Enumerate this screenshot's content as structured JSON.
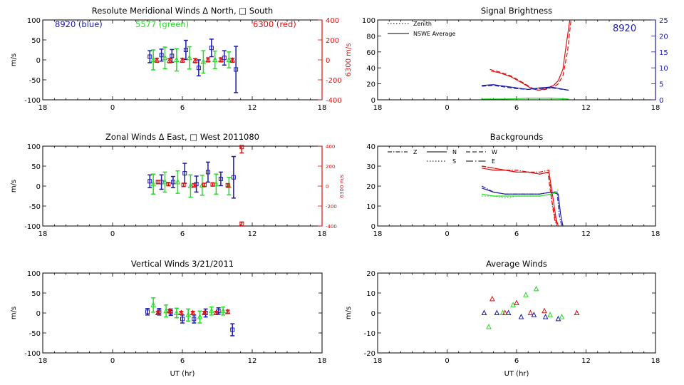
{
  "colors": {
    "axis": "#000000",
    "blue": "#1a1aa8",
    "green": "#22dd22",
    "red": "#dd1111"
  },
  "chart_data": [
    {
      "id": "meridional",
      "type": "scatter",
      "title": "Resolute Meridional Winds Δ North, □ South",
      "xlabel": "",
      "ylabel": "m/s",
      "xticks": [
        "18",
        "0",
        "6",
        "12",
        "18"
      ],
      "yticks": [
        "100",
        "50",
        "0",
        "-50",
        "-100"
      ],
      "right_axis": {
        "label": "6300 m/s",
        "ticks": [
          "400",
          "200",
          "0",
          "-200",
          "-400"
        ]
      },
      "ylim": [
        -100,
        100
      ],
      "legend": [
        {
          "label": "8920 (blue)",
          "color": "blue"
        },
        {
          "label": "5577 (green)",
          "color": "green"
        },
        {
          "label": "6300 (red)",
          "color": "red"
        }
      ],
      "series": [
        {
          "name": "8920 (blue)",
          "color": "blue",
          "marker": "square",
          "points": [
            [
              3.2,
              8,
              15
            ],
            [
              4.2,
              12,
              15
            ],
            [
              5.1,
              10,
              16
            ],
            [
              6.3,
              25,
              24
            ],
            [
              7.4,
              -20,
              20
            ],
            [
              8.5,
              30,
              22
            ],
            [
              9.6,
              5,
              18
            ],
            [
              10.6,
              -24,
              58
            ]
          ]
        },
        {
          "name": "5577 (green)",
          "color": "green",
          "marker": "triangle",
          "points": [
            [
              3.5,
              0,
              25
            ],
            [
              4.5,
              5,
              27
            ],
            [
              5.5,
              0,
              28
            ],
            [
              6.6,
              5,
              28
            ],
            [
              7.8,
              -5,
              28
            ],
            [
              8.8,
              0,
              22
            ],
            [
              10.0,
              0,
              20
            ]
          ]
        },
        {
          "name": "6300 (red)",
          "color": "red",
          "marker": "triangle",
          "points": [
            [
              3.8,
              -1,
              5
            ],
            [
              4.9,
              -2,
              5
            ],
            [
              6.0,
              -1,
              5
            ],
            [
              7.1,
              -2,
              5
            ],
            [
              8.2,
              0,
              5
            ],
            [
              9.3,
              0,
              5
            ],
            [
              10.3,
              -1,
              5
            ]
          ]
        }
      ]
    },
    {
      "id": "brightness",
      "type": "line",
      "title": "Signal Brightness",
      "xlabel": "",
      "ylabel": "",
      "xticks": [
        "18",
        "0",
        "6",
        "12",
        "18"
      ],
      "yticks": [
        "100",
        "80",
        "60",
        "40",
        "20",
        "0"
      ],
      "right_axis": {
        "label": "",
        "ticks": [
          "25",
          "20",
          "15",
          "10",
          "5",
          "0"
        ]
      },
      "ylim": [
        0,
        100
      ],
      "annotation": "8920",
      "legend": [
        {
          "label": "Zenith",
          "style": "dotted"
        },
        {
          "label": "NSWE Average",
          "style": "solid"
        }
      ],
      "series": [
        {
          "name": "Zenith",
          "color": "red",
          "style": "dashed",
          "x": [
            3.7,
            4.5,
            5.5,
            6.5,
            7.3,
            7.9,
            8.5,
            9.2,
            9.6,
            10.0,
            10.4,
            10.7
          ],
          "y": [
            38,
            35,
            30,
            22,
            15,
            12,
            13,
            16,
            20,
            30,
            60,
            100
          ]
        },
        {
          "name": "NSWE Average",
          "color": "red",
          "style": "solid",
          "x": [
            3.8,
            4.5,
            5.5,
            6.5,
            7.3,
            7.9,
            8.5,
            9.2,
            9.6,
            10.0,
            10.3,
            10.6
          ],
          "y": [
            36,
            34,
            29,
            21,
            14,
            12,
            14,
            18,
            24,
            38,
            70,
            100
          ]
        },
        {
          "name": "Zenith",
          "color": "blue",
          "style": "dashed",
          "x": [
            3.0,
            4.0,
            5.0,
            6.0,
            7.0,
            8.0,
            9.0,
            10.5
          ],
          "y": [
            17,
            18,
            16,
            14,
            13,
            14,
            15,
            12
          ]
        },
        {
          "name": "NSWE Average",
          "color": "blue",
          "style": "solid",
          "x": [
            3.0,
            4.0,
            5.0,
            6.0,
            7.0,
            8.0,
            9.0,
            10.5
          ],
          "y": [
            18,
            19,
            17,
            15,
            13,
            15,
            16,
            12
          ]
        },
        {
          "name": "NSWE Average",
          "color": "green",
          "style": "solid",
          "x": [
            3.0,
            5.0,
            7.0,
            9.0,
            10.5
          ],
          "y": [
            1,
            1,
            2,
            2,
            1
          ]
        }
      ]
    },
    {
      "id": "zonal",
      "type": "scatter",
      "title": "Zonal Winds Δ East, □ West 2011080",
      "xlabel": "",
      "ylabel": "m/s",
      "xticks": [
        "18",
        "0",
        "6",
        "12",
        "18"
      ],
      "yticks": [
        "100",
        "50",
        "0",
        "-50",
        "-100"
      ],
      "right_axis": {
        "label": "6300 m/s",
        "ticks": [
          "400",
          "200",
          "0",
          "-200",
          "-400"
        ]
      },
      "ylim": [
        -100,
        100
      ],
      "series": [
        {
          "name": "8920 (blue)",
          "color": "blue",
          "marker": "square",
          "points": [
            [
              3.2,
              12,
              16
            ],
            [
              4.2,
              10,
              18
            ],
            [
              5.2,
              10,
              14
            ],
            [
              6.2,
              32,
              25
            ],
            [
              7.2,
              5,
              20
            ],
            [
              8.2,
              35,
              25
            ],
            [
              9.3,
              18,
              17
            ],
            [
              10.4,
              22,
              52
            ]
          ]
        },
        {
          "name": "5577 (green)",
          "color": "green",
          "marker": "triangle",
          "points": [
            [
              3.5,
              5,
              25
            ],
            [
              4.5,
              10,
              25
            ],
            [
              5.6,
              10,
              28
            ],
            [
              6.7,
              0,
              28
            ],
            [
              7.7,
              2,
              25
            ],
            [
              8.9,
              5,
              25
            ],
            [
              10.0,
              0,
              22
            ]
          ]
        },
        {
          "name": "6300 (red)",
          "color": "red",
          "marker": "square",
          "points": [
            [
              3.9,
              10,
              4
            ],
            [
              4.8,
              5,
              4
            ],
            [
              6.1,
              3,
              4
            ],
            [
              7.0,
              2,
              4
            ],
            [
              7.9,
              3,
              4
            ],
            [
              8.6,
              4,
              4
            ],
            [
              9.9,
              2,
              4
            ],
            [
              11.1,
              98,
              15
            ],
            [
              11.1,
              -95,
              5
            ]
          ]
        }
      ]
    },
    {
      "id": "backgrounds",
      "type": "line",
      "title": "Backgrounds",
      "xlabel": "",
      "ylabel": "",
      "xticks": [
        "18",
        "0",
        "6",
        "12",
        "18"
      ],
      "yticks": [
        "40",
        "30",
        "20",
        "10",
        "0"
      ],
      "ylim": [
        0,
        40
      ],
      "legend": [
        {
          "label": "Z",
          "style": "dashdot"
        },
        {
          "label": "N",
          "style": "solid"
        },
        {
          "label": "W",
          "style": "dashed"
        },
        {
          "label": "S",
          "style": "dotted"
        },
        {
          "label": "E",
          "style": "dashdotlong"
        }
      ],
      "series": [
        {
          "name": "Z",
          "color": "red",
          "style": "dashdot",
          "x": [
            3.0,
            4.0,
            5.0,
            6.0,
            7.0,
            8.0,
            8.8,
            9.1,
            9.3,
            9.5
          ],
          "y": [
            30,
            29,
            28,
            28,
            27,
            27,
            28,
            10,
            3,
            0
          ]
        },
        {
          "name": "N",
          "color": "red",
          "style": "solid",
          "x": [
            3.0,
            4.0,
            5.0,
            6.0,
            7.0,
            8.0,
            8.8,
            9.2,
            9.4,
            9.6
          ],
          "y": [
            29,
            28,
            28,
            27,
            27,
            26,
            27,
            12,
            4,
            0
          ]
        },
        {
          "name": "W",
          "color": "red",
          "style": "dashed",
          "x": [
            3.0,
            4.0,
            5.0,
            6.0,
            7.0,
            8.0,
            8.7,
            9.0,
            9.3,
            9.5
          ],
          "y": [
            30,
            29,
            28,
            27,
            27,
            26,
            27,
            14,
            5,
            0
          ]
        },
        {
          "name": "Z",
          "color": "blue",
          "style": "dashdot",
          "x": [
            3.0,
            4.0,
            5.0,
            6.0,
            7.0,
            8.0,
            9.0,
            9.5,
            9.7,
            9.9
          ],
          "y": [
            20,
            17,
            16,
            16,
            16,
            16,
            17,
            17,
            5,
            0
          ]
        },
        {
          "name": "N",
          "color": "blue",
          "style": "solid",
          "x": [
            3.0,
            4.0,
            5.0,
            6.0,
            7.0,
            8.0,
            9.0,
            9.6,
            9.8,
            10.0
          ],
          "y": [
            19,
            17,
            16,
            16,
            16,
            16,
            17,
            16,
            6,
            0
          ]
        },
        {
          "name": "S",
          "color": "green",
          "style": "dotted",
          "x": [
            3.0,
            4.0,
            5.0,
            6.0,
            7.0,
            8.0,
            9.0,
            9.6
          ],
          "y": [
            15,
            15,
            14,
            15,
            15,
            15,
            16,
            18
          ]
        },
        {
          "name": "N",
          "color": "green",
          "style": "solid",
          "x": [
            3.0,
            4.0,
            5.0,
            6.0,
            7.0,
            8.0,
            9.0,
            9.5
          ],
          "y": [
            16,
            15,
            15,
            15,
            15,
            15,
            16,
            17
          ]
        }
      ]
    },
    {
      "id": "vertical",
      "type": "scatter",
      "title": "Vertical Winds 3/21/2011",
      "xlabel": "UT (hr)",
      "ylabel": "m/s",
      "xticks": [
        "18",
        "0",
        "6",
        "12",
        "18"
      ],
      "yticks": [
        "100",
        "50",
        "0",
        "-50",
        "-100"
      ],
      "ylim": [
        -100,
        100
      ],
      "series": [
        {
          "name": "8920 (blue)",
          "color": "blue",
          "marker": "square",
          "points": [
            [
              3.0,
              3,
              8
            ],
            [
              4.0,
              3,
              8
            ],
            [
              5.0,
              2,
              8
            ],
            [
              6.0,
              -15,
              10
            ],
            [
              7.0,
              -15,
              10
            ],
            [
              8.0,
              0,
              10
            ],
            [
              9.1,
              5,
              8
            ],
            [
              10.3,
              -42,
              15
            ]
          ]
        },
        {
          "name": "5577 (green)",
          "color": "green",
          "marker": "triangle",
          "points": [
            [
              3.5,
              20,
              18
            ],
            [
              4.6,
              5,
              15
            ],
            [
              5.5,
              0,
              12
            ],
            [
              6.5,
              -5,
              15
            ],
            [
              7.5,
              -10,
              15
            ],
            [
              8.5,
              5,
              10
            ],
            [
              9.5,
              5,
              10
            ]
          ]
        },
        {
          "name": "6300 (red)",
          "color": "red",
          "marker": "triangle",
          "points": [
            [
              3.9,
              0,
              4
            ],
            [
              4.9,
              5,
              4
            ],
            [
              5.9,
              0,
              4
            ],
            [
              6.9,
              0,
              4
            ],
            [
              7.9,
              0,
              4
            ],
            [
              8.9,
              0,
              4
            ],
            [
              9.9,
              3,
              4
            ]
          ]
        }
      ]
    },
    {
      "id": "average",
      "type": "scatter",
      "title": "Average Winds",
      "xlabel": "UT (hr)",
      "ylabel": "m/s",
      "xticks": [
        "18",
        "0",
        "6",
        "12",
        "18"
      ],
      "yticks": [
        "20",
        "10",
        "0",
        "-10",
        "-20"
      ],
      "ylim": [
        -20,
        20
      ],
      "series": [
        {
          "name": "8920 (blue)",
          "color": "blue",
          "marker": "triangle",
          "points": [
            [
              3.2,
              0
            ],
            [
              4.3,
              0
            ],
            [
              5.3,
              0
            ],
            [
              6.4,
              -2
            ],
            [
              7.5,
              -1
            ],
            [
              8.5,
              -2
            ],
            [
              9.6,
              -3
            ]
          ]
        },
        {
          "name": "5577 (green)",
          "color": "green",
          "marker": "triangle",
          "points": [
            [
              3.6,
              -7
            ],
            [
              4.8,
              0
            ],
            [
              5.7,
              4
            ],
            [
              6.8,
              9
            ],
            [
              7.7,
              12
            ],
            [
              8.9,
              -1
            ],
            [
              9.9,
              -2
            ]
          ]
        },
        {
          "name": "6300 (red)",
          "color": "red",
          "marker": "triangle",
          "points": [
            [
              3.9,
              7
            ],
            [
              5.0,
              0
            ],
            [
              6.0,
              5
            ],
            [
              7.2,
              0
            ],
            [
              8.4,
              1
            ],
            [
              11.2,
              0
            ]
          ]
        }
      ]
    }
  ]
}
